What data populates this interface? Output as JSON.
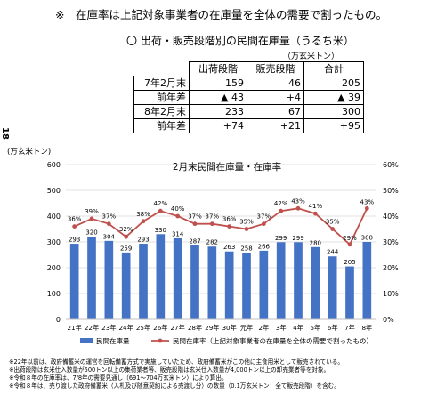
{
  "top_note": "※　在庫率は上記対象事業者の在庫量を全体の需要で割ったもの。",
  "table": {
    "title": "〇 出荷・販売段階別の民間在庫量（うるち米）",
    "unit": "（万玄米トン）",
    "headers": [
      "出荷段階",
      "販売段階",
      "合計"
    ],
    "rows": [
      {
        "label": "7年2月末",
        "values": [
          "159",
          "46",
          "205"
        ]
      },
      {
        "label": "前年差",
        "values": [
          "▲ 43",
          "+4",
          "▲ 39"
        ]
      },
      {
        "label": "8年2月末",
        "values": [
          "233",
          "67",
          "300"
        ]
      },
      {
        "label": "前年差",
        "values": [
          "+74",
          "+21",
          "+95"
        ]
      }
    ]
  },
  "side_mark": "18",
  "chart_data": {
    "type": "bar",
    "title": "2月末民間在庫量・在庫率",
    "ylabel": "(万玄米トン)",
    "ylim": [
      0,
      600
    ],
    "y2lim": [
      0,
      60
    ],
    "yticks": [
      "0",
      "100",
      "200",
      "300",
      "400",
      "500",
      "600"
    ],
    "y2ticks": [
      "0%",
      "10%",
      "20%",
      "30%",
      "40%",
      "50%",
      "60%"
    ],
    "categories": [
      "21年",
      "22年",
      "23年",
      "24年",
      "25年",
      "26年",
      "27年",
      "28年",
      "29年",
      "30年",
      "元年",
      "2年",
      "3年",
      "4年",
      "5年",
      "6年",
      "7年",
      "8年"
    ],
    "series": [
      {
        "name": "民間在庫量",
        "type": "bar",
        "color": "#4472c4",
        "values": [
          293,
          320,
          304,
          259,
          293,
          330,
          314,
          287,
          282,
          263,
          258,
          266,
          299,
          299,
          280,
          244,
          205,
          300
        ],
        "labels": [
          "293",
          "320",
          "304",
          "259",
          "293",
          "330",
          "314",
          "287",
          "282",
          "263",
          "258",
          "266",
          "299",
          "299",
          "280",
          "244",
          "205",
          "300"
        ]
      },
      {
        "name": "民間在庫率（上記対象事業者の在庫量を全体の需要で割ったもの）",
        "type": "line",
        "axis": "right",
        "color": "#c0504d",
        "values": [
          36,
          39,
          37,
          32,
          38,
          42,
          40,
          37,
          37,
          36,
          35,
          37,
          42,
          43,
          41,
          35,
          29,
          43
        ],
        "labels": [
          "36%",
          "39%",
          "37%",
          "32%",
          "38%",
          "42%",
          "40%",
          "37%",
          "37%",
          "36%",
          "35%",
          "37%",
          "42%",
          "43%",
          "41%",
          "35%",
          "29%",
          "43%"
        ]
      }
    ],
    "legend_position": "bottom"
  },
  "footnotes": [
    "※22年以前は、政府備蓄米の運営を回転備蓄方式で実施していたため、政府備蓄米がこの他に主食用米として販売されている。",
    "※出荷段階は玄米仕入数量が500トン以上の集荷業者等、販売段階は玄米仕入数量が4,000トン以上の卸売業者等を対象。",
    "※令和８年の在庫率は、7/8年の需要見通し（691～704万玄米トン）により算出。",
    "※令和８年は、売り渡した政府備蓄米（入札及び随意契約による売渡し分）の数量（0.1万玄米トン：全て販売段階）を含む。"
  ]
}
